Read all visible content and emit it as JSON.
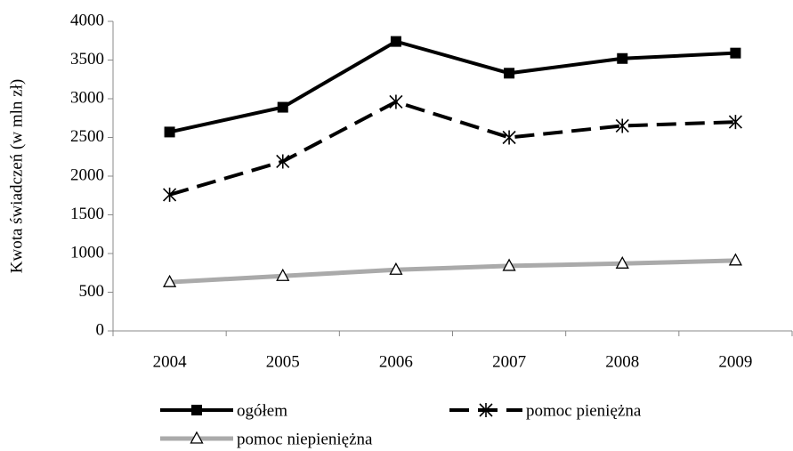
{
  "chart_data": {
    "type": "line",
    "y_label": "Kwota świadczeń (w mln zł)",
    "categories": [
      "2004",
      "2005",
      "2006",
      "2007",
      "2008",
      "2009"
    ],
    "series": [
      {
        "name": "ogółem",
        "color": "#000000",
        "line_style": "solid",
        "marker": "square",
        "values": [
          2570,
          2890,
          3740,
          3330,
          3520,
          3590
        ]
      },
      {
        "name": "pomoc pieniężna",
        "color": "#000000",
        "line_style": "dashed",
        "marker": "asterisk",
        "values": [
          1760,
          2190,
          2960,
          2500,
          2650,
          2700
        ]
      },
      {
        "name": "pomoc niepieniężna",
        "color": "#aaaaaa",
        "line_style": "solid",
        "marker": "triangle",
        "values": [
          630,
          710,
          790,
          840,
          870,
          910
        ]
      }
    ],
    "ylim": [
      0,
      4000
    ],
    "yticks": [
      0,
      500,
      1000,
      1500,
      2000,
      2500,
      3000,
      3500,
      4000
    ],
    "grid": false,
    "legend": "bottom"
  }
}
